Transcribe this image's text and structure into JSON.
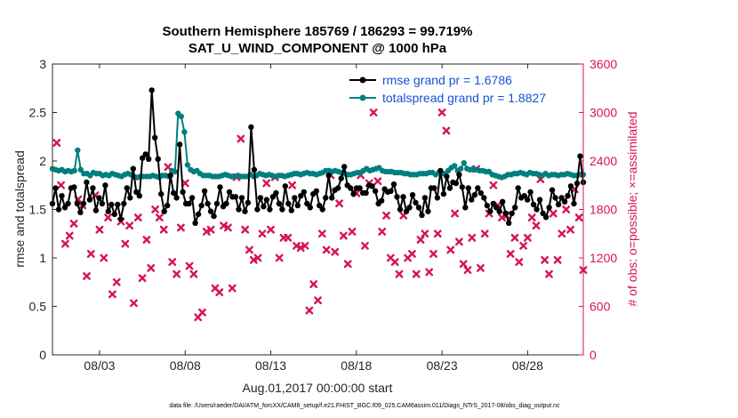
{
  "chart_data": {
    "type": "line",
    "title": "Southern Hemisphere 185769 / 186293 = 99.719%",
    "subtitle": "SAT_U_WIND_COMPONENT @ 1000 hPa",
    "xlabel": "Aug.01,2017 00:00:00 start",
    "ylabel": "rmse and totalspread",
    "y2label": "# of obs: o=possible; ×=assimilated",
    "xlim": [
      0.25,
      31.25
    ],
    "ylim": [
      0,
      3
    ],
    "y2lim": [
      0,
      3600
    ],
    "x_ticks": [
      {
        "x": 3,
        "label": "08/03"
      },
      {
        "x": 8,
        "label": "08/08"
      },
      {
        "x": 13,
        "label": "08/13"
      },
      {
        "x": 18,
        "label": "08/18"
      },
      {
        "x": 23,
        "label": "08/23"
      },
      {
        "x": 28,
        "label": "08/28"
      }
    ],
    "y_ticks": [
      "0",
      "0.5",
      "1",
      "1.5",
      "2",
      "2.5",
      "3"
    ],
    "y2_ticks": [
      "0",
      "600",
      "1200",
      "1800",
      "2400",
      "3000",
      "3600"
    ],
    "legend_position": "top-right",
    "footer": "data file: /Users/raeder/DAI/ATM_forcXX/CAM6_setup/f.e21.FHIST_BGC.f09_025.CAM6assim.011/Diags_NTrS_2017-08/obs_diag_output.nc",
    "series": [
      {
        "name": "rmse grand pr = 1.6786",
        "color": "#000000",
        "marker": "circle",
        "axis": "left",
        "values": [
          1.56,
          1.72,
          1.5,
          1.64,
          1.52,
          1.56,
          1.72,
          1.73,
          1.56,
          1.47,
          1.56,
          1.78,
          1.6,
          1.72,
          1.49,
          1.62,
          1.56,
          1.75,
          1.48,
          1.55,
          1.45,
          1.55,
          1.4,
          1.56,
          1.72,
          1.62,
          1.92,
          1.68,
          1.64,
          2.03,
          2.07,
          2.02,
          2.73,
          2.24,
          2.02,
          1.66,
          1.48,
          1.54,
          1.85,
          1.67,
          1.62,
          2.17,
          1.68,
          1.56,
          1.56,
          1.62,
          1.36,
          1.45,
          1.54,
          1.69,
          1.56,
          1.48,
          1.43,
          1.56,
          1.73,
          1.53,
          1.56,
          1.68,
          1.63,
          1.63,
          1.5,
          1.62,
          1.48,
          1.57,
          2.35,
          1.91,
          1.5,
          1.62,
          1.53,
          1.6,
          1.5,
          1.63,
          1.67,
          1.56,
          1.5,
          1.74,
          1.56,
          1.49,
          1.62,
          1.54,
          1.64,
          1.68,
          1.56,
          1.52,
          1.66,
          1.69,
          1.54,
          1.5,
          1.62,
          1.85,
          1.62,
          1.7,
          1.72,
          1.82,
          1.94,
          1.75,
          1.72,
          1.66,
          1.72,
          1.72,
          1.67,
          1.67,
          1.75,
          1.74,
          1.69,
          1.56,
          1.59,
          1.71,
          1.68,
          1.69,
          1.76,
          1.63,
          1.5,
          1.63,
          1.48,
          1.52,
          1.65,
          1.57,
          1.52,
          1.44,
          1.62,
          1.48,
          1.72,
          1.72,
          1.62,
          1.9,
          1.66,
          1.84,
          1.72,
          1.78,
          1.77,
          1.86,
          1.73,
          1.52,
          1.72,
          1.6,
          1.65,
          1.72,
          1.67,
          1.62,
          1.54,
          1.48,
          1.56,
          1.52,
          1.48,
          1.58,
          1.46,
          1.36,
          1.46,
          1.52,
          1.72,
          1.62,
          1.64,
          1.6,
          1.68,
          1.55,
          1.5,
          1.6,
          1.46,
          1.42,
          1.52,
          1.7,
          1.62,
          1.55,
          1.62,
          1.58,
          1.64,
          1.74,
          1.56,
          1.77,
          2.05,
          1.78
        ]
      },
      {
        "name": "totalspread grand pr = 1.8827",
        "color": "#007f7f",
        "marker": "circle",
        "axis": "left",
        "values": [
          1.92,
          1.91,
          1.9,
          1.91,
          1.89,
          1.9,
          1.89,
          1.9,
          2.11,
          1.91,
          1.87,
          1.87,
          1.85,
          1.88,
          1.87,
          1.87,
          1.85,
          1.86,
          1.85,
          1.87,
          1.86,
          1.85,
          1.84,
          1.86,
          1.87,
          1.86,
          1.84,
          1.83,
          1.84,
          1.84,
          1.84,
          1.84,
          1.85,
          1.84,
          1.83,
          1.85,
          1.85,
          1.84,
          1.9,
          1.89,
          2.49,
          2.46,
          2.3,
          1.96,
          1.91,
          1.89,
          1.9,
          1.87,
          1.85,
          1.85,
          1.85,
          1.84,
          1.84,
          1.84,
          1.85,
          1.86,
          1.85,
          1.84,
          1.84,
          1.85,
          1.84,
          1.84,
          1.84,
          1.86,
          1.84,
          1.85,
          1.87,
          1.86,
          1.85,
          1.86,
          1.85,
          1.84,
          1.85,
          1.85,
          1.84,
          1.85,
          1.86,
          1.87,
          1.87,
          1.86,
          1.87,
          1.88,
          1.87,
          1.87,
          1.86,
          1.87,
          1.88,
          1.9,
          1.9,
          1.89,
          1.9,
          1.89,
          1.88,
          1.87,
          1.86,
          1.86,
          1.87,
          1.88,
          1.88,
          1.9,
          1.92,
          1.9,
          1.91,
          1.92,
          1.93,
          1.9,
          1.89,
          1.89,
          1.89,
          1.88,
          1.88,
          1.88,
          1.87,
          1.87,
          1.86,
          1.86,
          1.86,
          1.87,
          1.87,
          1.87,
          1.88,
          1.88,
          1.86,
          1.88,
          1.87,
          1.87,
          1.9,
          1.93,
          1.95,
          1.9,
          1.92,
          1.98,
          1.92,
          1.91,
          1.92,
          1.91,
          1.9,
          1.9,
          1.89,
          1.89,
          1.86,
          1.85,
          1.84,
          1.83,
          1.84,
          1.86,
          1.86,
          1.87,
          1.87,
          1.88,
          1.87,
          1.86,
          1.88,
          1.87,
          1.87,
          1.86,
          1.85,
          1.87,
          1.85,
          1.86,
          1.86,
          1.85,
          1.86,
          1.86,
          1.87,
          1.86,
          1.85,
          1.85,
          1.86,
          1.86
        ]
      },
      {
        "name": "assimilated",
        "color": "#d6154f",
        "marker": "x",
        "axis": "right",
        "points": [
          [
            0.5,
            2625
          ],
          [
            0.75,
            2100
          ],
          [
            1.0,
            1375
          ],
          [
            1.25,
            1475
          ],
          [
            1.5,
            1625
          ],
          [
            1.75,
            1925
          ],
          [
            2.0,
            1850
          ],
          [
            2.25,
            975
          ],
          [
            2.5,
            1250
          ],
          [
            2.75,
            1975
          ],
          [
            3.0,
            1550
          ],
          [
            3.25,
            1200
          ],
          [
            3.5,
            1700
          ],
          [
            3.75,
            750
          ],
          [
            4.0,
            900
          ],
          [
            4.25,
            1650
          ],
          [
            4.5,
            1375
          ],
          [
            4.75,
            1600
          ],
          [
            5.0,
            640
          ],
          [
            5.25,
            1700
          ],
          [
            5.5,
            950
          ],
          [
            5.75,
            1425
          ],
          [
            6.0,
            1075
          ],
          [
            6.25,
            1800
          ],
          [
            6.5,
            1700
          ],
          [
            6.75,
            1550
          ],
          [
            7.0,
            2325
          ],
          [
            7.25,
            1150
          ],
          [
            7.5,
            1000
          ],
          [
            7.75,
            1575
          ],
          [
            8.0,
            2125
          ],
          [
            8.25,
            1100
          ],
          [
            8.5,
            1000
          ],
          [
            8.75,
            465
          ],
          [
            9.0,
            525
          ],
          [
            9.25,
            1525
          ],
          [
            9.5,
            1550
          ],
          [
            9.75,
            825
          ],
          [
            10.0,
            775
          ],
          [
            10.25,
            1600
          ],
          [
            10.5,
            1575
          ],
          [
            10.75,
            825
          ],
          [
            11.0,
            2200
          ],
          [
            11.25,
            2675
          ],
          [
            11.5,
            1550
          ],
          [
            11.75,
            1300
          ],
          [
            12.0,
            1175
          ],
          [
            12.25,
            1200
          ],
          [
            12.5,
            1500
          ],
          [
            12.75,
            2125
          ],
          [
            13.0,
            1550
          ],
          [
            13.25,
            2200
          ],
          [
            13.5,
            1200
          ],
          [
            13.75,
            1450
          ],
          [
            14.0,
            1450
          ],
          [
            14.25,
            2100
          ],
          [
            14.5,
            1350
          ],
          [
            14.75,
            1325
          ],
          [
            15.0,
            1350
          ],
          [
            15.25,
            550
          ],
          [
            15.5,
            875
          ],
          [
            15.75,
            675
          ],
          [
            16.0,
            1500
          ],
          [
            16.25,
            1300
          ],
          [
            16.5,
            2225
          ],
          [
            16.75,
            1275
          ],
          [
            17.0,
            1875
          ],
          [
            17.25,
            1475
          ],
          [
            17.5,
            1125
          ],
          [
            17.75,
            1525
          ],
          [
            18.0,
            2000
          ],
          [
            18.25,
            2225
          ],
          [
            18.5,
            1350
          ],
          [
            18.75,
            2125
          ],
          [
            19.0,
            3000
          ],
          [
            19.25,
            2150
          ],
          [
            19.5,
            1525
          ],
          [
            19.75,
            1725
          ],
          [
            20.0,
            1200
          ],
          [
            20.25,
            1150
          ],
          [
            20.5,
            1000
          ],
          [
            20.75,
            1725
          ],
          [
            21.0,
            1200
          ],
          [
            21.25,
            1250
          ],
          [
            21.5,
            1000
          ],
          [
            21.75,
            1425
          ],
          [
            22.0,
            1500
          ],
          [
            22.25,
            1025
          ],
          [
            22.5,
            1250
          ],
          [
            22.75,
            1500
          ],
          [
            23.0,
            3000
          ],
          [
            23.25,
            2775
          ],
          [
            23.5,
            1300
          ],
          [
            23.75,
            1750
          ],
          [
            24.0,
            1400
          ],
          [
            24.25,
            1125
          ],
          [
            24.5,
            1050
          ],
          [
            24.75,
            1450
          ],
          [
            25.0,
            2300
          ],
          [
            25.25,
            1075
          ],
          [
            25.5,
            1500
          ],
          [
            25.75,
            1750
          ],
          [
            26.0,
            2100
          ],
          [
            26.25,
            1850
          ],
          [
            26.5,
            1700
          ],
          [
            26.75,
            1725
          ],
          [
            27.0,
            1250
          ],
          [
            27.25,
            1450
          ],
          [
            27.5,
            1150
          ],
          [
            27.75,
            1350
          ],
          [
            28.0,
            1450
          ],
          [
            28.25,
            1700
          ],
          [
            28.5,
            1600
          ],
          [
            28.75,
            2175
          ],
          [
            29.0,
            1175
          ],
          [
            29.25,
            1000
          ],
          [
            29.5,
            1750
          ],
          [
            29.75,
            1175
          ],
          [
            30.0,
            1500
          ],
          [
            30.25,
            1800
          ],
          [
            30.5,
            1550
          ],
          [
            30.75,
            2050
          ],
          [
            31.0,
            1700
          ],
          [
            31.25,
            1050
          ]
        ]
      }
    ]
  }
}
